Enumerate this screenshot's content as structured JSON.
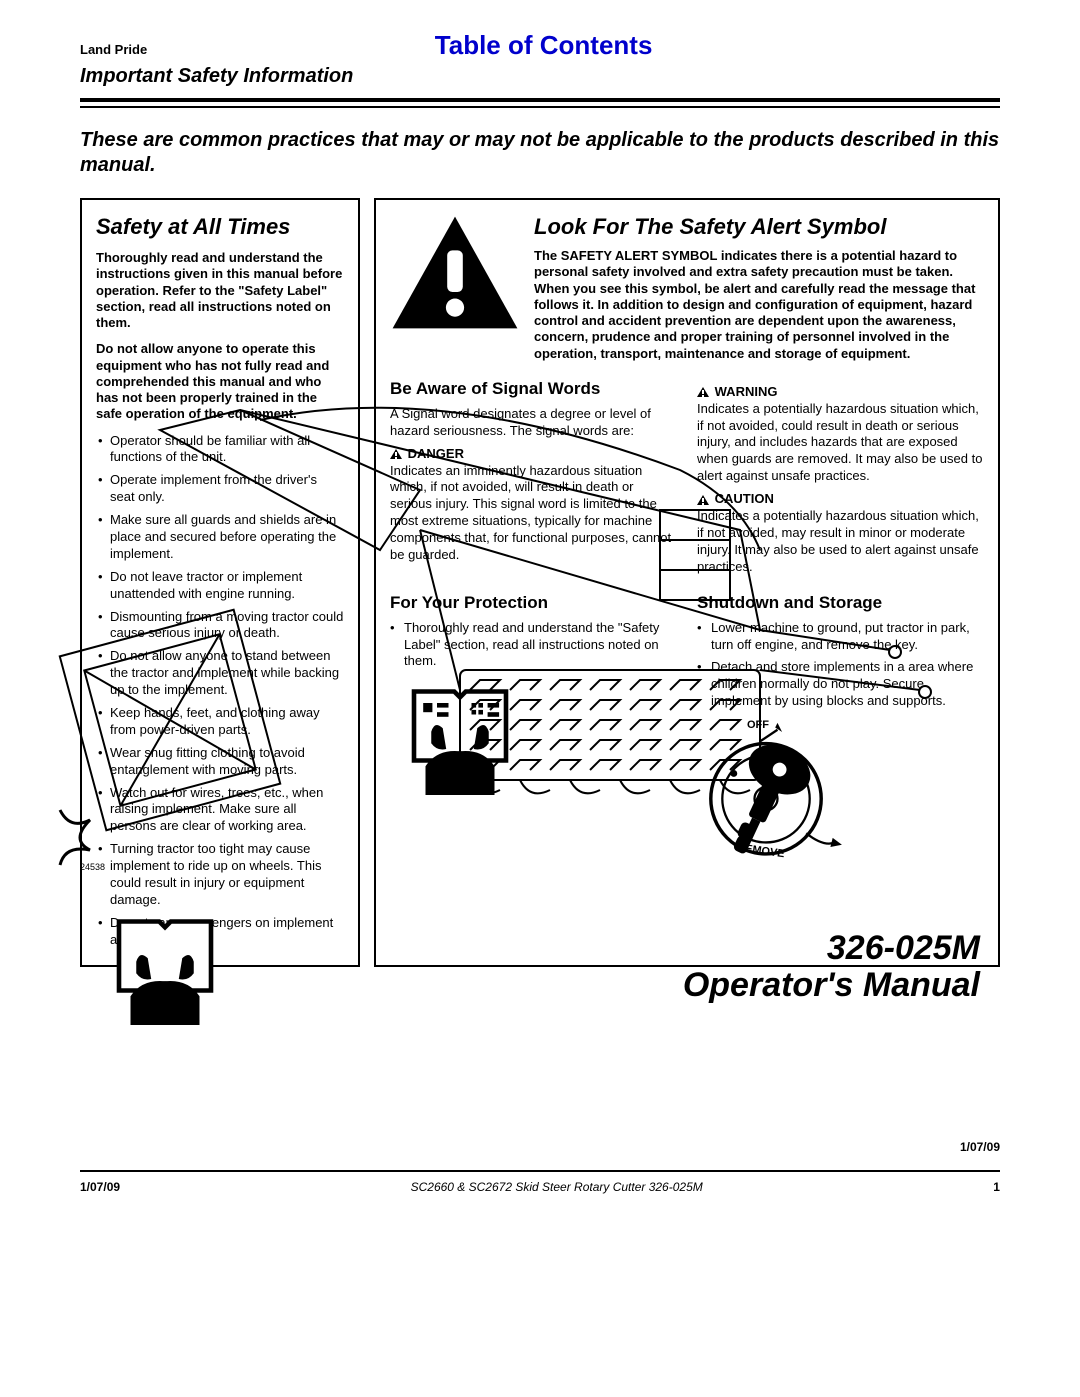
{
  "header": {
    "brand": "Land Pride",
    "toc": "Table of Contents",
    "subtitle": "Important Safety Information"
  },
  "intro": "These are common practices that may or may not be applicable to the products described in this manual.",
  "left_panel": {
    "title": "Safety at All Times",
    "para1": "Thoroughly read and understand the instructions given in this manual before operation. Refer to the \"Safety Label\" section, read all instructions noted on them.",
    "para2": "Do not allow anyone to operate this equipment who has not fully read and comprehended this manual and who has not been properly trained in the safe operation of the equipment.",
    "bullets": [
      "Operator should be familiar with all functions of the unit.",
      "Operate implement from the driver's seat only.",
      "Make sure all guards and shields are in place and secured before operating the implement.",
      "Do not leave tractor or implement unattended with engine running.",
      "Dismounting from a moving tractor could cause serious injury or death.",
      "Do not allow anyone to stand between the tractor and implement while backing up to the implement.",
      "Keep hands, feet, and clothing away from power-driven parts.",
      "Wear snug fitting clothing to avoid entanglement with moving parts.",
      "Watch out for wires, trees, etc., when raising implement. Make sure all persons are clear of working area.",
      "Turning tractor too tight may cause implement to ride up on wheels. This could result in injury or equipment damage.",
      "Do not carry passengers on implement at any time."
    ]
  },
  "right_panel": {
    "alert_title": "Look For The Safety Alert Symbol",
    "alert_body": "The SAFETY ALERT SYMBOL indicates there is a potential hazard to personal safety involved and extra safety precaution must be taken. When you see this symbol, be alert and carefully read the message that follows it. In addition to design and configuration of equipment, hazard control and accident prevention are dependent upon the awareness, concern, prudence and proper training of personnel involved in the operation, transport, maintenance and storage of equipment.",
    "signal": {
      "title": "Be Aware of Signal Words",
      "intro": "A Signal word designates a degree or level of hazard seriousness. The signal words are:",
      "danger_head": "DANGER",
      "danger_body": "Indicates an imminently hazardous situation which, if not avoided, will result in death or serious injury. This signal word is limited to the most extreme situations, typically for machine components that, for functional purposes, cannot be guarded.",
      "warning_head": "WARNING",
      "warning_body": "Indicates a potentially hazardous situation which, if not avoided, could result in death or serious injury, and includes hazards that are exposed when guards are removed. It may also be used to alert against unsafe practices.",
      "caution_head": "CAUTION",
      "caution_body": "Indicates a potentially hazardous situation which, if not avoided, may result in minor or moderate injury. It may also be used to alert against unsafe practices."
    },
    "protection": {
      "title": "For Your Protection",
      "body": "Thoroughly read and understand the \"Safety Label\" section, read all instructions noted on them."
    },
    "shutdown": {
      "title": "Shutdown and Storage",
      "b1": "Lower machine to ground, put tractor in park, turn off engine, and remove the key.",
      "b2": "Detach and store implements in a area where children normally do not play. Secure implement by using blocks and supports.",
      "off": "OFF",
      "remove": "REMOVE"
    }
  },
  "watermark": {
    "line1": "326-025M",
    "line2": "Operator's Manual"
  },
  "small_id": "24538",
  "footer": {
    "date": "1/07/09",
    "product": "SC2660 & SC2672 Skid Steer Rotary Cutter   326-025M",
    "page": "1"
  }
}
